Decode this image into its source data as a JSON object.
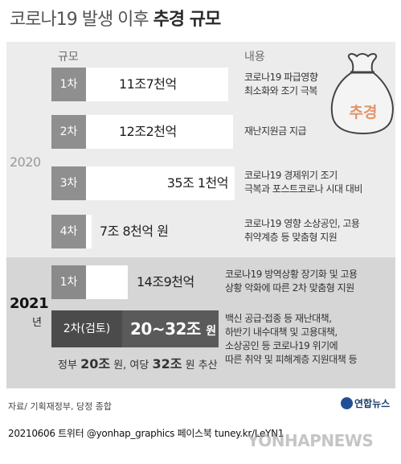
{
  "title_prefix": "코로나19 발생 이후 ",
  "title_bold": "추경 규모",
  "col_scale": "규모",
  "col_content": "내용",
  "year_2020": "2020",
  "year_2021": "2021",
  "year_suffix": "년",
  "bag_label": "추경",
  "chart_data": {
    "type": "bar",
    "orientation": "horizontal",
    "title": "코로나19 발생 이후 추경 규모",
    "unit": "조 원",
    "rows": [
      {
        "year": "2020",
        "label": "1차",
        "amount_text": "11조7천억",
        "value": 11.7,
        "desc": [
          "코로나19 파급영향",
          "최소화와 조기 극복"
        ]
      },
      {
        "year": "2020",
        "label": "2차",
        "amount_text": "12조2천억",
        "value": 12.2,
        "desc": [
          "재난지원금 지급"
        ]
      },
      {
        "year": "2020",
        "label": "3차",
        "amount_text": "35조 1천억",
        "value": 35.1,
        "desc": [
          "코로나19 경제위기 조기",
          "극복과 포스트코로나 시대 대비"
        ]
      },
      {
        "year": "2020",
        "label": "4차",
        "amount_text": "7조 8천억 원",
        "value": 7.8,
        "desc": [
          "코로나19 영향 소상공인, 고용",
          "취약계층 등 맞춤형 지원"
        ]
      },
      {
        "year": "2021",
        "label": "1차",
        "amount_text": "14조9천억",
        "value": 14.9,
        "desc": [
          "코로나19 방역상황 장기화 및 고용",
          "상황 악화에 따른 2차 맞춤형 지원"
        ]
      },
      {
        "year": "2021",
        "label": "2차(검토)",
        "amount_text": "20~32조",
        "amount_unit": "원",
        "value": [
          20,
          32
        ],
        "desc": [
          "백신 공급·접종 등 재난대책,",
          "하반기 내수대책 및 고용대책,",
          "소상공인 등 코로나19 위기에",
          "따른 취약 및 피해계층 지원대책 등"
        ]
      }
    ],
    "footnote": {
      "p1": "정부 ",
      "b1": "20조",
      "p2": " 원, 여당 ",
      "b2": "32조",
      "p3": " 원 추산"
    }
  },
  "source": "자료/ 기획재정부, 당정 종합",
  "logo": "연합뉴스",
  "credit": "20210606   트위터 @yonhap_graphics  페이스북 tuney.kr/LeYN1",
  "watermark": "YONHAPNEWS",
  "colors": {
    "panel": "#ececec",
    "panel_2021": "#d6d6d6",
    "label_bg": "#8f8f8f",
    "dark_bar": "#5a5a5a"
  }
}
